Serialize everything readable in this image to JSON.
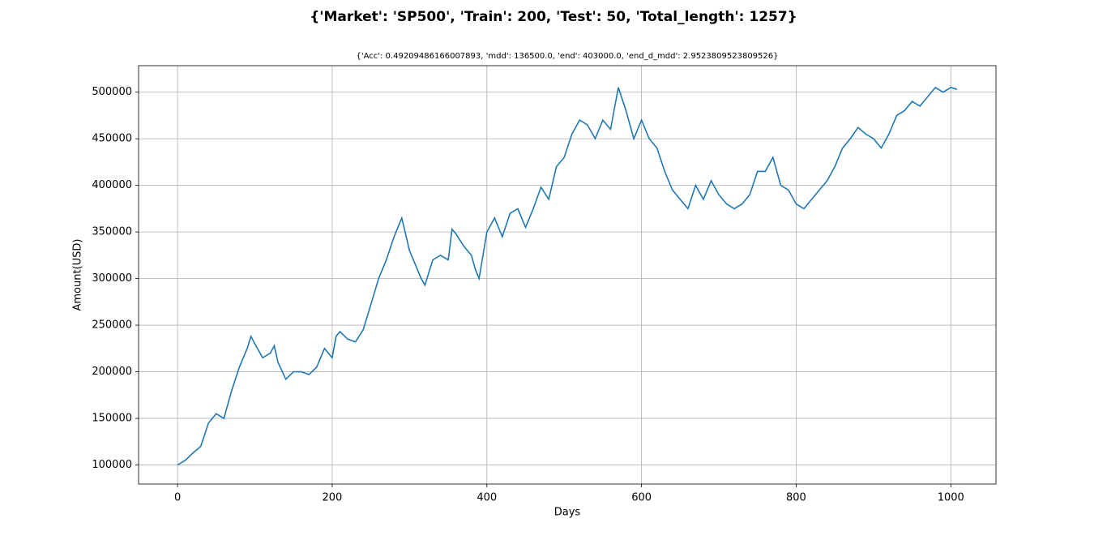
{
  "chart_data": {
    "type": "line",
    "title": "{'Market': 'SP500', 'Train': 200, 'Test': 50, 'Total_length': 1257}",
    "subtitle": "{'Acc': 0.49209486166007893, 'mdd': 136500.0, 'end': 403000.0, 'end_d_mdd': 2.9523809523809526}",
    "x_label": "Days",
    "y_label": "Amount(USD)",
    "x": [
      0,
      10,
      20,
      30,
      40,
      50,
      60,
      70,
      80,
      90,
      95,
      100,
      110,
      120,
      125,
      130,
      140,
      150,
      160,
      170,
      180,
      190,
      200,
      205,
      210,
      220,
      230,
      240,
      250,
      260,
      270,
      280,
      285,
      290,
      300,
      310,
      315,
      320,
      330,
      340,
      350,
      355,
      360,
      370,
      380,
      385,
      390,
      400,
      410,
      420,
      430,
      440,
      450,
      460,
      470,
      480,
      490,
      500,
      510,
      520,
      530,
      540,
      550,
      560,
      570,
      580,
      590,
      600,
      610,
      620,
      630,
      640,
      650,
      660,
      670,
      680,
      690,
      700,
      710,
      720,
      730,
      740,
      750,
      760,
      770,
      780,
      790,
      800,
      810,
      820,
      830,
      840,
      850,
      860,
      870,
      880,
      890,
      900,
      910,
      920,
      930,
      940,
      950,
      960,
      970,
      980,
      990,
      1000,
      1008
    ],
    "series": [
      {
        "name": "Amount",
        "color": "#1f77b4",
        "values": [
          100000,
          105000,
          113000,
          120000,
          145000,
          155000,
          150000,
          180000,
          205000,
          225000,
          238000,
          230000,
          215000,
          220000,
          228000,
          210000,
          192000,
          200000,
          200000,
          197000,
          205000,
          225000,
          215000,
          238000,
          243000,
          235000,
          232000,
          245000,
          272000,
          300000,
          320000,
          345000,
          355000,
          365000,
          330000,
          310000,
          300000,
          293000,
          320000,
          325000,
          320000,
          353000,
          348000,
          335000,
          325000,
          310000,
          300000,
          350000,
          365000,
          345000,
          370000,
          375000,
          355000,
          375000,
          398000,
          385000,
          420000,
          430000,
          455000,
          470000,
          465000,
          450000,
          470000,
          460000,
          505000,
          480000,
          450000,
          470000,
          450000,
          440000,
          415000,
          395000,
          385000,
          375000,
          400000,
          385000,
          405000,
          390000,
          380000,
          375000,
          380000,
          390000,
          415000,
          415000,
          430000,
          400000,
          395000,
          380000,
          375000,
          385000,
          395000,
          405000,
          420000,
          440000,
          450000,
          462000,
          455000,
          450000,
          440000,
          455000,
          475000,
          480000,
          490000,
          485000,
          495000,
          505000,
          500000,
          505000,
          503000
        ]
      }
    ],
    "xlim": [
      -50.4,
      1058.4
    ],
    "ylim": [
      79600,
      528400
    ],
    "xticks": [
      0,
      200,
      400,
      600,
      800,
      1000
    ],
    "yticks": [
      100000,
      150000,
      200000,
      250000,
      300000,
      350000,
      400000,
      450000,
      500000
    ],
    "grid": true
  }
}
